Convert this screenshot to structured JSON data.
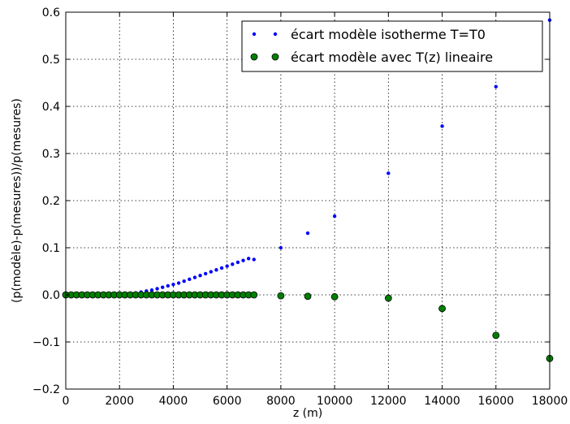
{
  "chart_data": {
    "type": "scatter",
    "title": "",
    "xlabel": "z (m)",
    "ylabel": "(p(modèle)-p(mesures))/p(mesures)",
    "xlim": [
      0,
      18000
    ],
    "ylim": [
      -0.2,
      0.6
    ],
    "x_ticks": [
      0,
      2000,
      4000,
      6000,
      8000,
      10000,
      12000,
      14000,
      16000,
      18000
    ],
    "y_ticks": [
      -0.2,
      -0.1,
      0.0,
      0.1,
      0.2,
      0.3,
      0.4,
      0.5,
      0.6
    ],
    "x_tick_labels": [
      "0",
      "2000",
      "4000",
      "6000",
      "8000",
      "10000",
      "12000",
      "14000",
      "16000",
      "18000"
    ],
    "y_tick_labels": [
      "−0.2",
      "−0.1",
      "0.0",
      "0.1",
      "0.2",
      "0.3",
      "0.4",
      "0.5",
      "0.6"
    ],
    "grid": true,
    "legend_position": "top-right",
    "series": [
      {
        "name": "écart modèle isotherme T=T0",
        "color": "#0000ff",
        "marker": "small-dot",
        "points": [
          [
            0,
            0.0
          ],
          [
            200,
            0.0
          ],
          [
            400,
            0.0
          ],
          [
            600,
            0.0
          ],
          [
            800,
            0.0
          ],
          [
            1000,
            0.0
          ],
          [
            1200,
            0.0
          ],
          [
            1400,
            0.0
          ],
          [
            1600,
            0.0
          ],
          [
            1800,
            0.0
          ],
          [
            2000,
            0.0
          ],
          [
            2200,
            0.001
          ],
          [
            2400,
            0.002
          ],
          [
            2600,
            0.004
          ],
          [
            2800,
            0.006
          ],
          [
            3000,
            0.008
          ],
          [
            3200,
            0.01
          ],
          [
            3400,
            0.013
          ],
          [
            3600,
            0.016
          ],
          [
            3800,
            0.019
          ],
          [
            4000,
            0.022
          ],
          [
            4200,
            0.025
          ],
          [
            4400,
            0.029
          ],
          [
            4600,
            0.033
          ],
          [
            4800,
            0.037
          ],
          [
            5000,
            0.041
          ],
          [
            5200,
            0.045
          ],
          [
            5400,
            0.049
          ],
          [
            5600,
            0.053
          ],
          [
            5800,
            0.057
          ],
          [
            6000,
            0.061
          ],
          [
            6200,
            0.065
          ],
          [
            6400,
            0.069
          ],
          [
            6600,
            0.073
          ],
          [
            6800,
            0.077
          ],
          [
            7000,
            0.075
          ],
          [
            8000,
            0.1
          ],
          [
            9000,
            0.131
          ],
          [
            10000,
            0.167
          ],
          [
            12000,
            0.258
          ],
          [
            14000,
            0.358
          ],
          [
            16000,
            0.442
          ],
          [
            18000,
            0.583
          ]
        ]
      },
      {
        "name": "écart modèle avec T(z) lineaire",
        "color": "#008000",
        "marker": "large-dot",
        "points": [
          [
            0,
            0.0
          ],
          [
            200,
            0.0
          ],
          [
            400,
            0.0
          ],
          [
            600,
            0.0
          ],
          [
            800,
            0.0
          ],
          [
            1000,
            0.0
          ],
          [
            1200,
            0.0
          ],
          [
            1400,
            0.0
          ],
          [
            1600,
            0.0
          ],
          [
            1800,
            0.0
          ],
          [
            2000,
            0.0
          ],
          [
            2200,
            0.0
          ],
          [
            2400,
            0.0
          ],
          [
            2600,
            0.0
          ],
          [
            2800,
            0.0
          ],
          [
            3000,
            0.0
          ],
          [
            3200,
            0.0
          ],
          [
            3400,
            0.0
          ],
          [
            3600,
            0.0
          ],
          [
            3800,
            0.0
          ],
          [
            4000,
            0.0
          ],
          [
            4200,
            0.0
          ],
          [
            4400,
            0.0
          ],
          [
            4600,
            0.0
          ],
          [
            4800,
            0.0
          ],
          [
            5000,
            0.0
          ],
          [
            5200,
            0.0
          ],
          [
            5400,
            0.0
          ],
          [
            5600,
            0.0
          ],
          [
            5800,
            0.0
          ],
          [
            6000,
            0.0
          ],
          [
            6200,
            0.0
          ],
          [
            6400,
            0.0
          ],
          [
            6600,
            0.0
          ],
          [
            6800,
            0.0
          ],
          [
            7000,
            0.0
          ],
          [
            8000,
            -0.002
          ],
          [
            9000,
            -0.003
          ],
          [
            10000,
            -0.004
          ],
          [
            12000,
            -0.007
          ],
          [
            14000,
            -0.029
          ],
          [
            16000,
            -0.086
          ],
          [
            18000,
            -0.135
          ]
        ]
      }
    ]
  }
}
